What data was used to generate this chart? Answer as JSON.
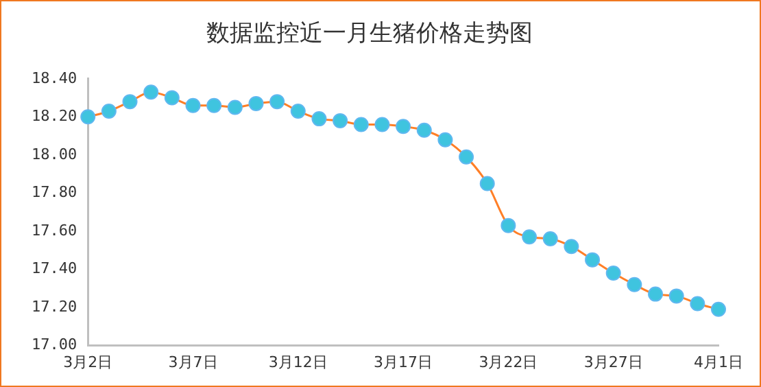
{
  "chart_data": {
    "type": "line",
    "title": "数据监控近一月生猪价格走势图",
    "categories": [
      "3月2日",
      null,
      null,
      null,
      null,
      "3月7日",
      null,
      null,
      null,
      null,
      "3月12日",
      null,
      null,
      null,
      null,
      "3月17日",
      null,
      null,
      null,
      null,
      "3月22日",
      null,
      null,
      null,
      null,
      "3月27日",
      null,
      null,
      null,
      null,
      "4月1日"
    ],
    "series": [
      {
        "color": "#ff7f27",
        "values": [
          18.2,
          18.23,
          18.28,
          18.33,
          18.3,
          18.26,
          18.26,
          18.25,
          18.27,
          18.28,
          18.23,
          18.19,
          18.18,
          18.16,
          18.16,
          18.15,
          18.13,
          18.08,
          17.99,
          17.85,
          17.63,
          17.57,
          17.56,
          17.52,
          17.45,
          17.38,
          17.32,
          17.27,
          17.26,
          17.22,
          17.19
        ]
      }
    ],
    "ylim": [
      17.0,
      18.4
    ],
    "yticks": [
      {
        "value": 17.0,
        "label": "17.00"
      },
      {
        "value": 17.2,
        "label": "17.20"
      },
      {
        "value": 17.4,
        "label": "17.40"
      },
      {
        "value": 17.6,
        "label": "17.60"
      },
      {
        "value": 17.8,
        "label": "17.80"
      },
      {
        "value": 18.0,
        "label": "18.00"
      },
      {
        "value": 18.2,
        "label": "18.20"
      },
      {
        "value": 18.4,
        "label": "18.40"
      }
    ],
    "grid": false,
    "legend": false,
    "marker": "circle",
    "line_style": "solid"
  }
}
